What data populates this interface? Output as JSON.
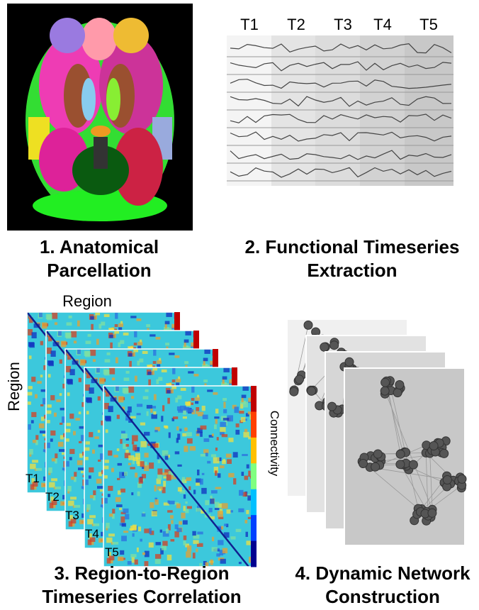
{
  "panels": [
    {
      "caption": [
        "1. Anatomical",
        "Parcellation"
      ]
    },
    {
      "caption": [
        "2. Functional Timeseries",
        "Extraction"
      ],
      "time_labels": [
        "T1",
        "T2",
        "T3",
        "T4",
        "T5"
      ]
    },
    {
      "caption": [
        "3. Region-to-Region",
        "Timeseries Correlation"
      ],
      "axis_top": "Region",
      "axis_left": "Region",
      "colorbar_label": "Connectivity",
      "time_labels": [
        "T1",
        "T2",
        "T3",
        "T4",
        "T5"
      ]
    },
    {
      "caption": [
        "4. Dynamic Network",
        "Construction"
      ]
    }
  ]
}
